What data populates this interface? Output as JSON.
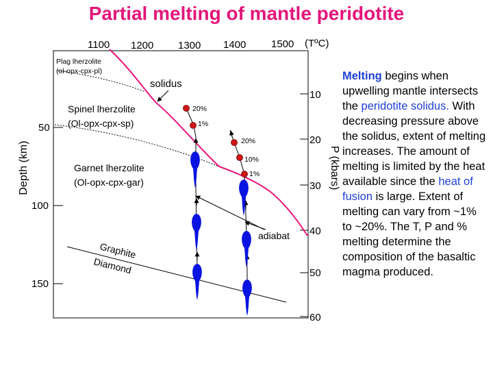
{
  "title": "Partial melting of mantle peridotite",
  "top_axis": {
    "ticks": [
      "1100",
      "1200",
      "1300",
      "1400",
      "1500"
    ],
    "unit": "(TºC)"
  },
  "left_axis": {
    "label": "Depth (km)",
    "ticks": [
      "50",
      "100",
      "150"
    ]
  },
  "right_axis": {
    "label": "P (kbars)",
    "ticks": [
      "10",
      "20",
      "30",
      "40",
      "50",
      "60"
    ]
  },
  "fields": {
    "plag_name": "Plag lherzolite",
    "plag_mineralogy": "(ol-opx-cpx-pl)",
    "spinel_name": "Spinel lherzolite",
    "spinel_mineralogy": "(Ol-opx-cpx-sp)",
    "garnet_name": "Garnet lherzolite",
    "garnet_mineralogy": "(Ol-opx-cpx-gar)"
  },
  "labels": {
    "solidus": "solidus",
    "adiabat": "adiabat",
    "graphite": "Graphite",
    "diamond": "Diamond"
  },
  "adiabat_left": {
    "pct_top": "20%",
    "pct_bottom": "1%"
  },
  "adiabat_right": {
    "pct_top": "20%",
    "pct_mid": "10%",
    "pct_bottom": "1%"
  },
  "colors": {
    "title": "#e4157a",
    "solidus": "#e8157a",
    "magma": "#0a14e0",
    "melt_point": "#d01818",
    "keyword": "#1f3fd6"
  },
  "side_text": {
    "melting": "Melting",
    "s1": " begins when upwelling mantle intersects the ",
    "peridotite_solidus": "peridotite solidus.",
    "s2": "  With decreasing pressure above the solidus, extent of melting increases.  The amount of melting is limited by the heat available since the ",
    "heat_of_fusion": "heat of fusion",
    "s3": " is large.  Extent of melting can vary from ~1% to ~20%.  The T, P and % melting determine the composition of the basaltic magma produced."
  }
}
